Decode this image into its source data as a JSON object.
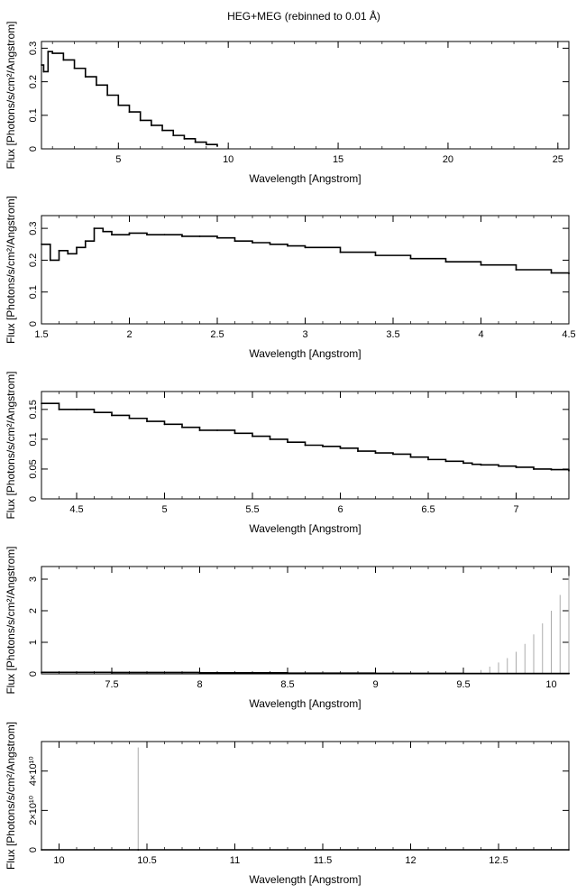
{
  "figure_title": "HEG+MEG (rebinned to 0.01 Å)",
  "chart_data": [
    {
      "type": "line",
      "xlabel": "Wavelength [Angstrom]",
      "ylabel": "Flux [Photons/s/cm²/Angstrom]",
      "xlim": [
        1.5,
        25.5
      ],
      "ylim": [
        0,
        0.32
      ],
      "xticks": [
        {
          "v": 5,
          "label": "5"
        },
        {
          "v": 10,
          "label": "10"
        },
        {
          "v": 15,
          "label": "15"
        },
        {
          "v": 20,
          "label": "20"
        },
        {
          "v": 25,
          "label": "25"
        }
      ],
      "yticks": [
        {
          "v": 0,
          "label": "0"
        },
        {
          "v": 0.1,
          "label": "0.1"
        },
        {
          "v": 0.2,
          "label": "0.2"
        },
        {
          "v": 0.3,
          "label": "0.3"
        }
      ],
      "series": [
        {
          "x": [
            1.5,
            1.6,
            1.8,
            2.0,
            2.5,
            3.0,
            3.5,
            4.0,
            4.5,
            5.0,
            5.5,
            6.0,
            6.5,
            7.0,
            7.5,
            8.0,
            8.5,
            9.0,
            9.5
          ],
          "y": [
            0.25,
            0.23,
            0.29,
            0.285,
            0.265,
            0.24,
            0.215,
            0.19,
            0.16,
            0.13,
            0.11,
            0.085,
            0.07,
            0.055,
            0.04,
            0.03,
            0.02,
            0.013,
            0.008
          ],
          "color": "#000000"
        }
      ]
    },
    {
      "type": "line",
      "xlabel": "Wavelength [Angstrom]",
      "ylabel": "Flux [Photons/s/cm²/Angstrom]",
      "xlim": [
        1.5,
        4.5
      ],
      "ylim": [
        0,
        0.34
      ],
      "xticks": [
        {
          "v": 1.5,
          "label": "1.5"
        },
        {
          "v": 2,
          "label": "2"
        },
        {
          "v": 2.5,
          "label": "2.5"
        },
        {
          "v": 3,
          "label": "3"
        },
        {
          "v": 3.5,
          "label": "3.5"
        },
        {
          "v": 4,
          "label": "4"
        },
        {
          "v": 4.5,
          "label": "4.5"
        }
      ],
      "yticks": [
        {
          "v": 0,
          "label": "0"
        },
        {
          "v": 0.1,
          "label": "0.1"
        },
        {
          "v": 0.2,
          "label": "0.2"
        },
        {
          "v": 0.3,
          "label": "0.3"
        }
      ],
      "series": [
        {
          "x": [
            1.5,
            1.55,
            1.6,
            1.65,
            1.7,
            1.75,
            1.8,
            1.85,
            1.9,
            2.0,
            2.1,
            2.2,
            2.3,
            2.4,
            2.5,
            2.6,
            2.7,
            2.8,
            2.9,
            3.0,
            3.2,
            3.4,
            3.6,
            3.8,
            4.0,
            4.2,
            4.4,
            4.5
          ],
          "y": [
            0.25,
            0.2,
            0.23,
            0.22,
            0.24,
            0.26,
            0.3,
            0.29,
            0.28,
            0.285,
            0.28,
            0.28,
            0.275,
            0.275,
            0.27,
            0.26,
            0.255,
            0.25,
            0.245,
            0.24,
            0.225,
            0.215,
            0.205,
            0.195,
            0.185,
            0.17,
            0.16,
            0.158
          ],
          "color": "#000000"
        }
      ]
    },
    {
      "type": "line",
      "xlabel": "Wavelength [Angstrom]",
      "ylabel": "Flux [Photons/s/cm²/Angstrom]",
      "xlim": [
        4.3,
        7.3
      ],
      "ylim": [
        0,
        0.18
      ],
      "xticks": [
        {
          "v": 4.5,
          "label": "4.5"
        },
        {
          "v": 5,
          "label": "5"
        },
        {
          "v": 5.5,
          "label": "5.5"
        },
        {
          "v": 6,
          "label": "6"
        },
        {
          "v": 6.5,
          "label": "6.5"
        },
        {
          "v": 7,
          "label": "7"
        }
      ],
      "yticks": [
        {
          "v": 0,
          "label": "0"
        },
        {
          "v": 0.05,
          "label": "0.05"
        },
        {
          "v": 0.1,
          "label": "0.1"
        },
        {
          "v": 0.15,
          "label": "0.15"
        }
      ],
      "series": [
        {
          "x": [
            4.3,
            4.4,
            4.5,
            4.6,
            4.7,
            4.8,
            4.9,
            5.0,
            5.1,
            5.2,
            5.3,
            5.4,
            5.5,
            5.6,
            5.7,
            5.8,
            5.9,
            6.0,
            6.1,
            6.2,
            6.3,
            6.4,
            6.5,
            6.6,
            6.7,
            6.75,
            6.8,
            6.9,
            7.0,
            7.1,
            7.2,
            7.3
          ],
          "y": [
            0.16,
            0.15,
            0.15,
            0.145,
            0.14,
            0.135,
            0.13,
            0.125,
            0.12,
            0.115,
            0.115,
            0.11,
            0.105,
            0.1,
            0.095,
            0.09,
            0.088,
            0.085,
            0.08,
            0.077,
            0.075,
            0.07,
            0.066,
            0.063,
            0.06,
            0.058,
            0.057,
            0.055,
            0.053,
            0.05,
            0.049,
            0.047
          ],
          "color": "#000000"
        }
      ]
    },
    {
      "type": "line",
      "xlabel": "Wavelength [Angstrom]",
      "ylabel": "Flux [Photons/s/cm²/Angstrom]",
      "xlim": [
        7.1,
        10.1
      ],
      "ylim": [
        0,
        3.4
      ],
      "xticks": [
        {
          "v": 7.5,
          "label": "7.5"
        },
        {
          "v": 8,
          "label": "8"
        },
        {
          "v": 8.5,
          "label": "8.5"
        },
        {
          "v": 9,
          "label": "9"
        },
        {
          "v": 9.5,
          "label": "9.5"
        },
        {
          "v": 10,
          "label": "10"
        }
      ],
      "yticks": [
        {
          "v": 0,
          "label": "0"
        },
        {
          "v": 1,
          "label": "1"
        },
        {
          "v": 2,
          "label": "2"
        },
        {
          "v": 3,
          "label": "3"
        }
      ],
      "series": [
        {
          "x": [
            7.1,
            7.5,
            8.0,
            8.5,
            9.0,
            9.5,
            10.1
          ],
          "y": [
            0.05,
            0.045,
            0.035,
            0.025,
            0.018,
            0.012,
            0.008
          ],
          "color": "#000000"
        }
      ],
      "error_bars": {
        "x": [
          9.55,
          9.6,
          9.65,
          9.7,
          9.75,
          9.8,
          9.85,
          9.9,
          9.95,
          10.0,
          10.05,
          10.1
        ],
        "upper": [
          0.03,
          0.12,
          0.23,
          0.36,
          0.5,
          0.7,
          0.95,
          1.25,
          1.6,
          2.0,
          2.5,
          3.1
        ],
        "color": "#aaaaaa"
      }
    },
    {
      "type": "line",
      "xlabel": "Wavelength [Angstrom]",
      "ylabel": "Flux [Photons/s/cm²/Angstrom]",
      "xlim": [
        9.9,
        12.9
      ],
      "ylim": [
        0,
        55000000000.0
      ],
      "xticks": [
        {
          "v": 10,
          "label": "10"
        },
        {
          "v": 10.5,
          "label": "10.5"
        },
        {
          "v": 11,
          "label": "11"
        },
        {
          "v": 11.5,
          "label": "11.5"
        },
        {
          "v": 12,
          "label": "12"
        },
        {
          "v": 12.5,
          "label": "12.5"
        }
      ],
      "yticks": [
        {
          "v": 0,
          "label": "0"
        },
        {
          "v": 20000000000.0,
          "label": "2×10¹⁰"
        },
        {
          "v": 40000000000.0,
          "label": "4×10¹⁰"
        }
      ],
      "series": [
        {
          "x": [
            9.9,
            10.45,
            12.9
          ],
          "y": [
            0,
            0,
            0
          ],
          "color": "#000000"
        }
      ],
      "error_bars": {
        "x": [
          10.45
        ],
        "upper": [
          52000000000.0
        ],
        "color": "#aaaaaa"
      }
    }
  ]
}
